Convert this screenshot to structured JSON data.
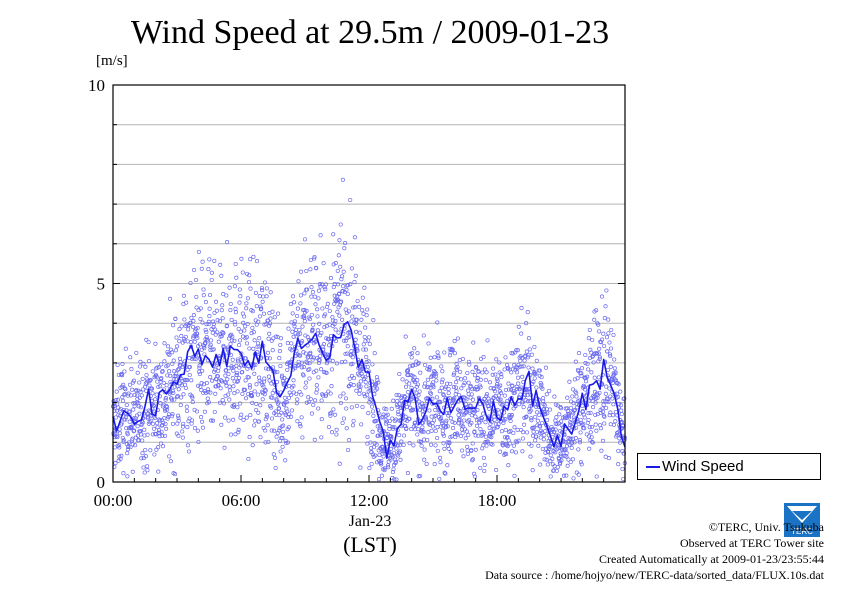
{
  "chart_data": {
    "type": "scatter",
    "title": "Wind Speed at 29.5m / 2009-01-23",
    "ylabel": "[m/s]",
    "xlabel": "(LST)",
    "x_date_label": "Jan-23",
    "ylim": [
      0,
      10
    ],
    "yticks": [
      "0",
      "5",
      "10"
    ],
    "xlim_hours": [
      0,
      24
    ],
    "xticks": [
      "00:00",
      "06:00",
      "12:00",
      "18:00"
    ],
    "grid": true,
    "legend_position": "right",
    "colors": {
      "series": "#1a1ae6",
      "points": "#6a6af0"
    },
    "series": [
      {
        "name": "Wind Speed",
        "x_hours": [
          0,
          0.5,
          1,
          1.5,
          2,
          2.5,
          3,
          3.5,
          4,
          4.5,
          5,
          5.5,
          6,
          6.5,
          7,
          7.5,
          8,
          8.5,
          9,
          9.5,
          10,
          10.5,
          11,
          11.5,
          12,
          12.5,
          13,
          13.5,
          14,
          14.5,
          15,
          15.5,
          16,
          16.5,
          17,
          17.5,
          18,
          18.5,
          19,
          19.5,
          20,
          20.5,
          21,
          21.5,
          22,
          22.5,
          23,
          23.5,
          24
        ],
        "values": [
          1.3,
          1.8,
          1.6,
          2.0,
          1.9,
          2.2,
          2.6,
          3.0,
          3.3,
          3.1,
          2.9,
          3.4,
          3.2,
          3.0,
          3.3,
          2.6,
          2.0,
          3.2,
          3.7,
          3.6,
          3.4,
          3.8,
          3.9,
          3.0,
          2.7,
          1.3,
          0.9,
          1.5,
          2.1,
          1.7,
          2.0,
          1.8,
          2.2,
          1.8,
          1.9,
          1.7,
          1.8,
          1.9,
          2.3,
          2.4,
          1.8,
          1.1,
          1.0,
          1.4,
          1.9,
          2.4,
          2.8,
          2.2,
          0.8
        ]
      }
    ]
  },
  "credits": {
    "copyright": "©TERC, Univ. Tsukuba",
    "observed": "Observed at TERC Tower site",
    "created": "Created Automatically at 2009-01-23/23:55:44",
    "source": "Data source : /home/hojyo/new/TERC-data/sorted_data/FLUX.10s.dat",
    "logo_text": "TERC"
  }
}
